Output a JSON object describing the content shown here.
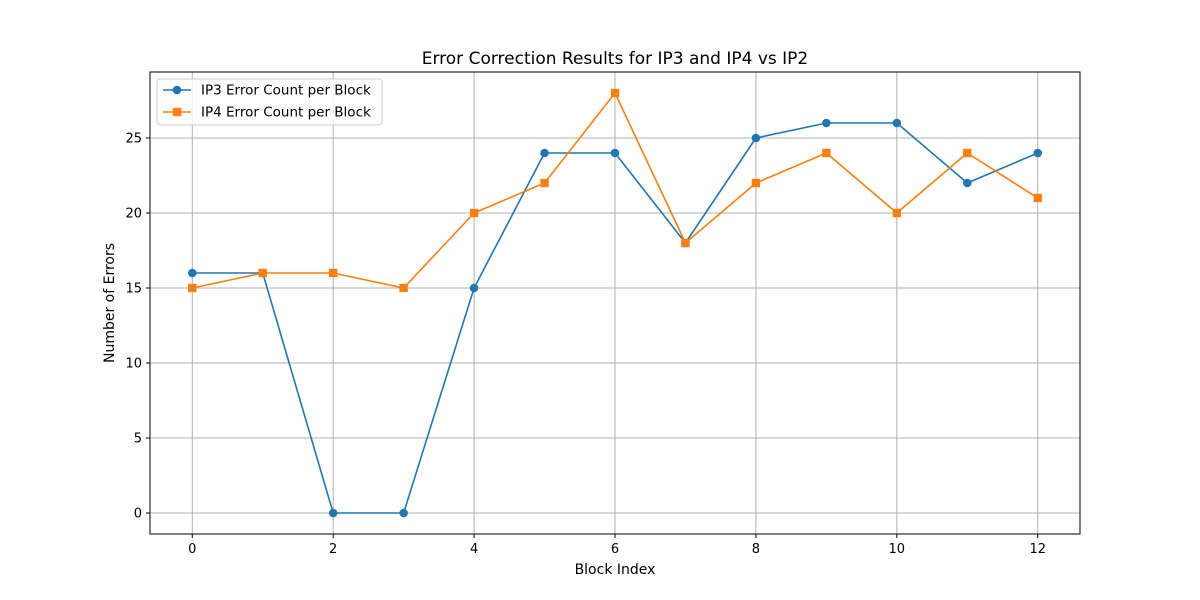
{
  "chart_data": {
    "type": "line",
    "title": "Error Correction Results for IP3 and IP4 vs IP2",
    "xlabel": "Block Index",
    "ylabel": "Number of Errors",
    "x": [
      0,
      1,
      2,
      3,
      4,
      5,
      6,
      7,
      8,
      9,
      10,
      11,
      12
    ],
    "xlim": [
      -0.6,
      12.6
    ],
    "ylim": [
      -1.4,
      29.4
    ],
    "xticks": [
      0,
      2,
      4,
      6,
      8,
      10,
      12
    ],
    "yticks": [
      0,
      5,
      10,
      15,
      20,
      25
    ],
    "grid": true,
    "legend_position": "top-left",
    "series": [
      {
        "name": "IP3 Error Count per Block",
        "values": [
          16,
          16,
          0,
          0,
          15,
          24,
          24,
          18,
          25,
          26,
          26,
          22,
          24
        ],
        "color": "#1f77b4",
        "marker": "circle"
      },
      {
        "name": "IP4 Error Count per Block",
        "values": [
          15,
          16,
          16,
          15,
          20,
          22,
          28,
          18,
          22,
          24,
          20,
          24,
          21
        ],
        "color": "#ff7f0e",
        "marker": "square"
      }
    ]
  }
}
